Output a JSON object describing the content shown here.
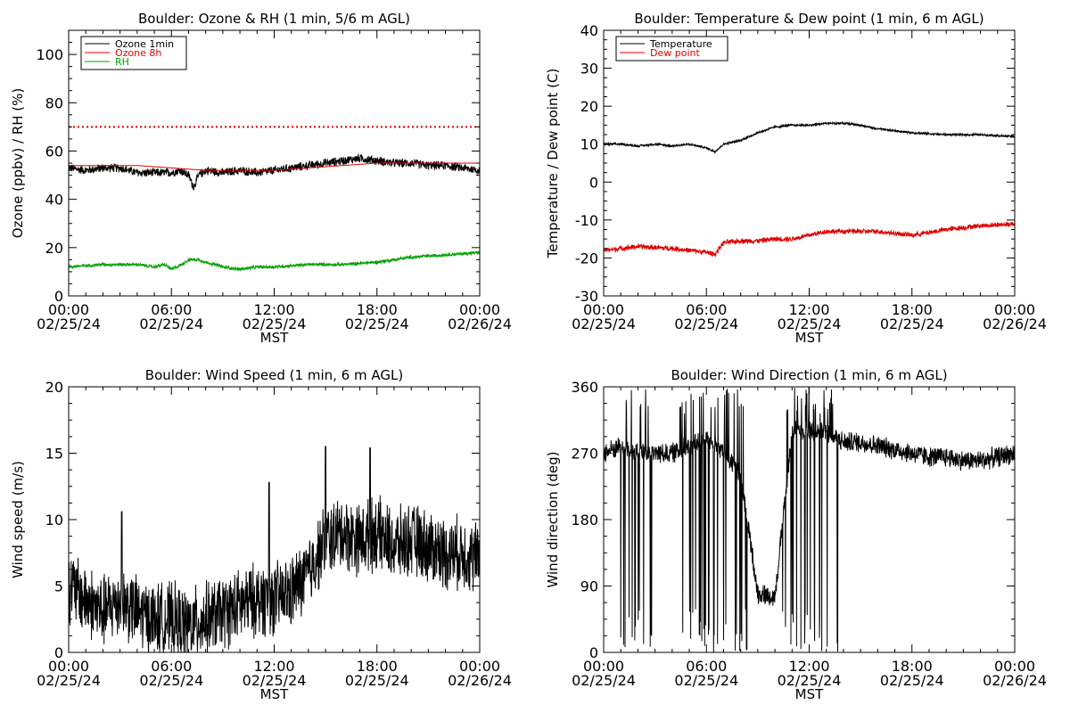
{
  "chart_data": [
    {
      "type": "line",
      "title": "Boulder: Ozone & RH (1 min, 5/6 m AGL)",
      "ylabel": "Ozone (ppbv) / RH (%)",
      "xlabel": "MST",
      "x_ticks": [
        {
          "time": "00:00",
          "date": "02/25/24"
        },
        {
          "time": "06:00",
          "date": "02/25/24"
        },
        {
          "time": "12:00",
          "date": "02/25/24"
        },
        {
          "time": "18:00",
          "date": "02/25/24"
        },
        {
          "time": "00:00",
          "date": "02/26/24"
        }
      ],
      "xlim_hours": [
        0,
        24
      ],
      "ylim": [
        0,
        110
      ],
      "y_ticks": [
        0,
        20,
        40,
        60,
        80,
        100
      ],
      "legend_position": "top-left",
      "reference_lines": [
        {
          "y": 70,
          "color": "#e00000",
          "style": "dotted"
        }
      ],
      "series": [
        {
          "name": "Ozone 1min",
          "color": "#000000",
          "noise": 1.6,
          "x": [
            0,
            1,
            2,
            3,
            4,
            5,
            6,
            6.5,
            7,
            7.3,
            7.6,
            8,
            9,
            10,
            11,
            12,
            13,
            14,
            15,
            16,
            17,
            18,
            19,
            20,
            21,
            22,
            23,
            24
          ],
          "y": [
            53,
            52,
            53,
            53,
            51,
            51,
            51,
            52,
            50,
            45,
            50,
            52,
            51,
            52,
            51,
            52,
            53,
            54,
            55,
            56,
            57,
            56,
            55,
            55,
            54,
            54,
            53,
            52
          ]
        },
        {
          "name": "Ozone 8h",
          "color": "#e00000",
          "noise": 0,
          "x": [
            0,
            2,
            4,
            6,
            8,
            10,
            12,
            14,
            16,
            18,
            20,
            22,
            24
          ],
          "y": [
            54,
            54,
            54,
            53,
            52,
            52,
            52,
            53,
            54,
            55,
            55,
            55,
            55
          ]
        },
        {
          "name": "RH",
          "color": "#00a000",
          "noise": 0.6,
          "x": [
            0,
            2,
            4,
            5,
            5.6,
            6,
            6.6,
            7,
            7.6,
            8,
            9,
            10,
            11,
            12,
            14,
            16,
            18,
            20,
            22,
            24
          ],
          "y": [
            12,
            13,
            13,
            12,
            13,
            11,
            13,
            15,
            15,
            14,
            12,
            11,
            12,
            12,
            13,
            13,
            14,
            16,
            17,
            18
          ]
        }
      ]
    },
    {
      "type": "line",
      "title": "Boulder: Temperature & Dew point (1 min, 6 m AGL)",
      "ylabel": "Temperature / Dew point (C)",
      "xlabel": "MST",
      "x_ticks": [
        {
          "time": "00:00",
          "date": "02/25/24"
        },
        {
          "time": "06:00",
          "date": "02/25/24"
        },
        {
          "time": "12:00",
          "date": "02/25/24"
        },
        {
          "time": "18:00",
          "date": "02/25/24"
        },
        {
          "time": "00:00",
          "date": "02/26/24"
        }
      ],
      "xlim_hours": [
        0,
        24
      ],
      "ylim": [
        -30,
        40
      ],
      "y_ticks": [
        -30,
        -20,
        -10,
        0,
        10,
        20,
        30,
        40
      ],
      "legend_position": "top-left",
      "series": [
        {
          "name": "Temperature",
          "color": "#000000",
          "noise": 0.25,
          "x": [
            0,
            1,
            2,
            3,
            4,
            5,
            6,
            6.5,
            7,
            8,
            9,
            10,
            11,
            12,
            13,
            14,
            15,
            16,
            17,
            18,
            20,
            22,
            24
          ],
          "y": [
            10,
            10,
            9.5,
            10,
            9.5,
            10,
            9,
            8,
            10,
            11,
            13,
            14.5,
            15,
            15,
            15.5,
            15.5,
            15,
            14,
            13.5,
            13,
            12.5,
            12.5,
            12
          ]
        },
        {
          "name": "Dew point",
          "color": "#e00000",
          "noise": 0.6,
          "x": [
            0,
            2,
            4,
            5,
            6,
            6.5,
            7,
            8,
            9,
            10,
            11,
            12,
            13,
            14,
            16,
            17,
            18,
            20,
            22,
            24
          ],
          "y": [
            -18,
            -17,
            -17.5,
            -18,
            -18.5,
            -19,
            -16,
            -15.5,
            -15.5,
            -15,
            -15,
            -14,
            -13,
            -13,
            -13,
            -13.5,
            -14,
            -12.5,
            -11.5,
            -11
          ]
        }
      ]
    },
    {
      "type": "line",
      "title": "Boulder: Wind Speed (1 min, 6 m AGL)",
      "ylabel": "Wind speed (m/s)",
      "xlabel": "MST",
      "x_ticks": [
        {
          "time": "00:00",
          "date": "02/25/24"
        },
        {
          "time": "06:00",
          "date": "02/25/24"
        },
        {
          "time": "12:00",
          "date": "02/25/24"
        },
        {
          "time": "18:00",
          "date": "02/25/24"
        },
        {
          "time": "00:00",
          "date": "02/26/24"
        }
      ],
      "xlim_hours": [
        0,
        24
      ],
      "ylim": [
        0,
        20
      ],
      "y_ticks": [
        0,
        5,
        10,
        15,
        20
      ],
      "series": [
        {
          "name": "",
          "color": "#000000",
          "noise": 2.4,
          "min": 0,
          "spikes": [
            [
              3.1,
              10.6
            ],
            [
              11.7,
              12.8
            ],
            [
              15,
              15.5
            ],
            [
              17.6,
              15.4
            ]
          ],
          "x": [
            0,
            1,
            2,
            3,
            4,
            5,
            6,
            7,
            8,
            9,
            10,
            11,
            12,
            13,
            14,
            15,
            16,
            17,
            18,
            19,
            20,
            21,
            22,
            23,
            24
          ],
          "y": [
            5,
            4,
            3,
            4,
            3,
            2.5,
            2.5,
            2,
            2.5,
            3,
            3.5,
            4,
            4,
            4.5,
            6,
            8.5,
            9,
            8.5,
            9,
            8,
            8.5,
            8,
            7.5,
            7.5,
            7
          ]
        }
      ]
    },
    {
      "type": "line",
      "title": "Boulder: Wind Direction (1 min, 6 m AGL)",
      "ylabel": "Wind direction (deg)",
      "xlabel": "MST",
      "x_ticks": [
        {
          "time": "00:00",
          "date": "02/25/24"
        },
        {
          "time": "06:00",
          "date": "02/25/24"
        },
        {
          "time": "12:00",
          "date": "02/25/24"
        },
        {
          "time": "18:00",
          "date": "02/25/24"
        },
        {
          "time": "00:00",
          "date": "02/26/24"
        }
      ],
      "xlim_hours": [
        0,
        24
      ],
      "ylim": [
        0,
        360
      ],
      "y_ticks": [
        0,
        90,
        180,
        270,
        360
      ],
      "series": [
        {
          "name": "",
          "color": "#000000",
          "noise": 12,
          "min": 0,
          "max": 360,
          "x": [
            0,
            1,
            2,
            3,
            4,
            5,
            6,
            7,
            8,
            9,
            10,
            11,
            12,
            13,
            14,
            15,
            16,
            17,
            18,
            19,
            20,
            21,
            22,
            23,
            24
          ],
          "y": [
            270,
            280,
            270,
            270,
            270,
            280,
            290,
            270,
            240,
            80,
            75,
            300,
            300,
            300,
            285,
            285,
            280,
            275,
            270,
            265,
            265,
            260,
            260,
            265,
            270
          ],
          "swing_windows": [
            [
              1.0,
              2.9
            ],
            [
              4.4,
              7.3
            ],
            [
              7.6,
              8.4
            ],
            [
              10.4,
              13.7
            ]
          ]
        }
      ]
    }
  ]
}
